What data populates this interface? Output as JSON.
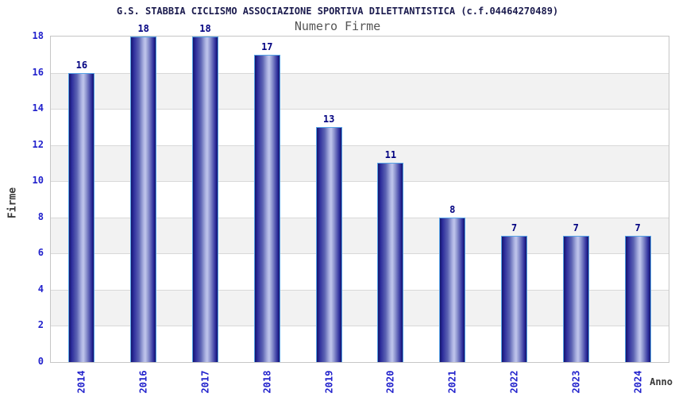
{
  "chart_data": {
    "type": "bar",
    "title": "G.S. STABBIA CICLISMO ASSOCIAZIONE SPORTIVA DILETTANTISTICA (c.f.04464270489)",
    "subtitle": "Numero Firme",
    "xlabel": "Anno",
    "ylabel": "Firme",
    "categories": [
      "2014",
      "2016",
      "2017",
      "2018",
      "2019",
      "2020",
      "2021",
      "2022",
      "2023",
      "2024"
    ],
    "values": [
      16,
      18,
      18,
      17,
      13,
      11,
      8,
      7,
      7,
      7
    ],
    "ylim": [
      0,
      18
    ],
    "ytick_interval": 2,
    "yticks": [
      0,
      2,
      4,
      6,
      8,
      10,
      12,
      14,
      16,
      18
    ],
    "grid": "horizontal gridlines every 2 units with alternating background bands",
    "legend": "none",
    "colors": {
      "title": "#1b1b4e",
      "subtitle": "#555555",
      "tick_label": "#2222cc",
      "value_label": "#000080",
      "axis_title": "#3a3a3a",
      "band_gray": "#f2f2f2",
      "band_white": "#ffffff",
      "gridline": "#d8d8d8",
      "plot_border": "#c6c6c6",
      "bar_dark": "#14146a",
      "bar_mid": "#2b2b9a",
      "bar_light": "#c0c6ec",
      "bar_border": "#55a2e6"
    }
  }
}
